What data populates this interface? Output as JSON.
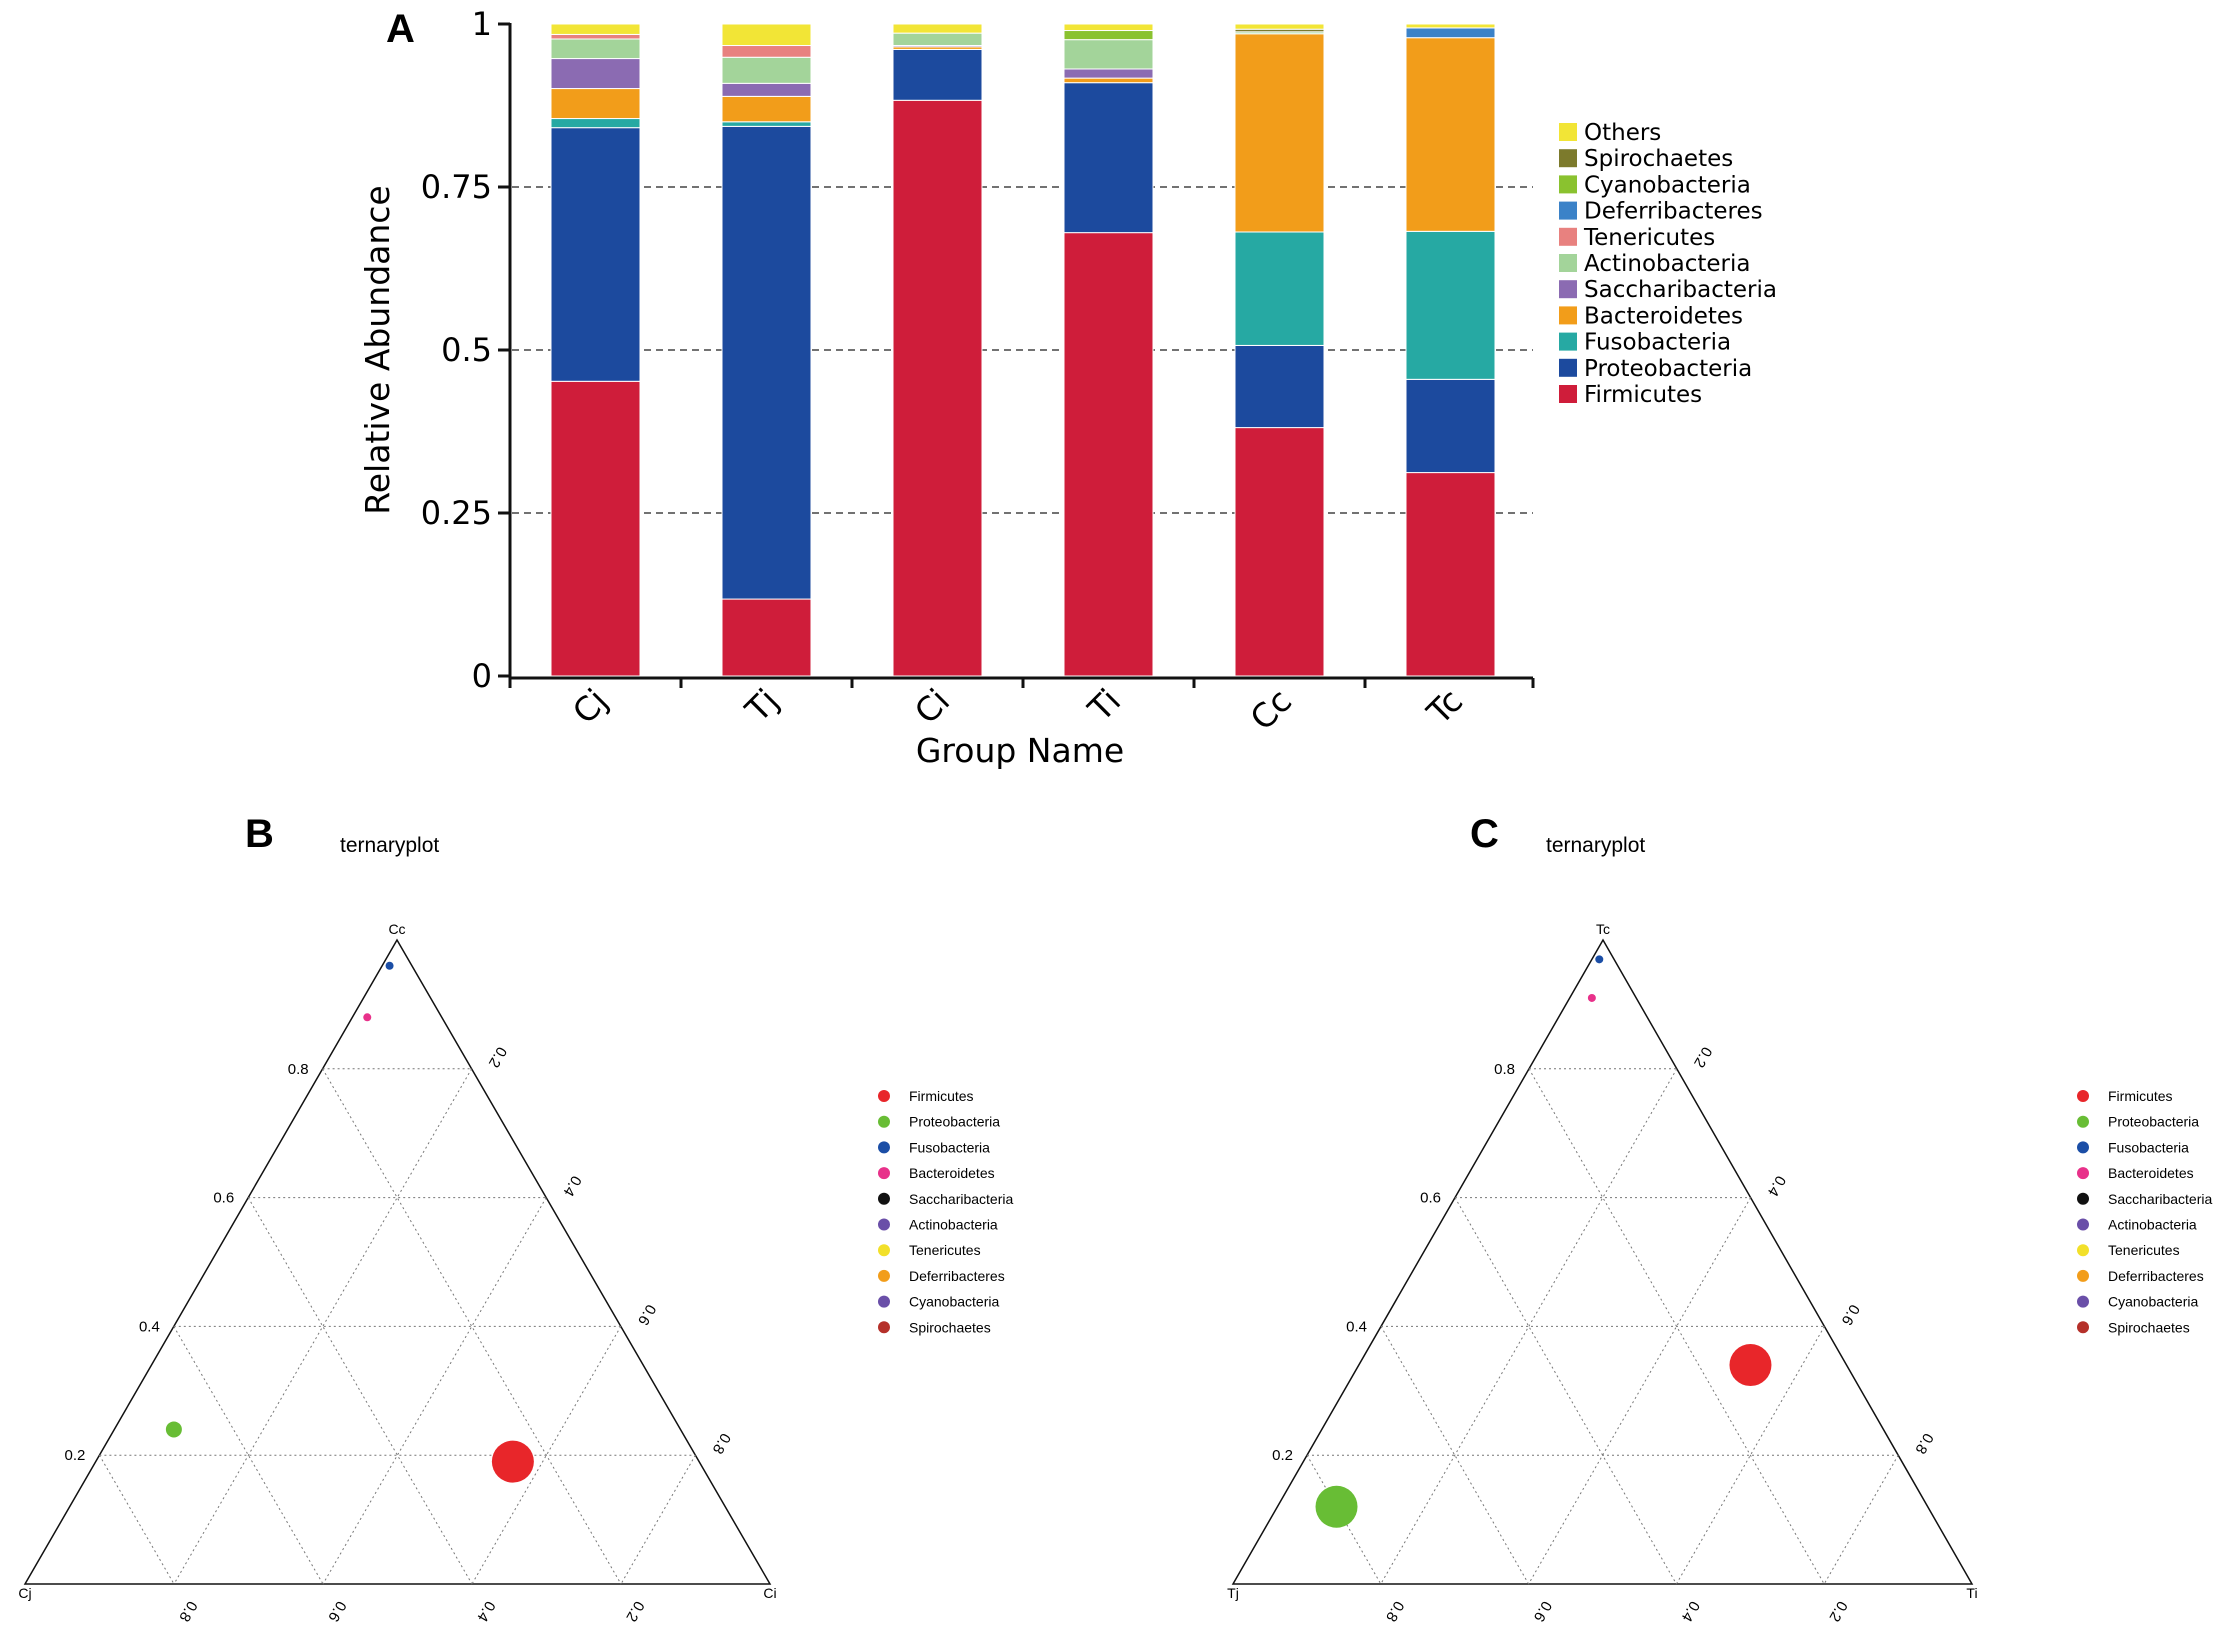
{
  "panel_a": {
    "letter": "A",
    "ylabel": "Relative Abundance",
    "xlabel": "Group Name",
    "yticks": [
      "0",
      "0.25",
      "0.5",
      "0.75",
      "1"
    ],
    "legend": [
      "Others",
      "Spirochaetes",
      "Cyanobacteria",
      "Deferribacteres",
      "Tenericutes",
      "Actinobacteria",
      "Saccharibacteria",
      "Bacteroidetes",
      "Fusobacteria",
      "Proteobacteria",
      "Firmicutes"
    ]
  },
  "panel_b": {
    "letter": "B",
    "title": "ternaryplot",
    "vertex_top": "Cc",
    "vertex_left": "Cj",
    "vertex_right": "Ci"
  },
  "panel_c": {
    "letter": "C",
    "title": "ternaryplot",
    "vertex_top": "Tc",
    "vertex_left": "Tj",
    "vertex_right": "Ti"
  },
  "ternary_ticks": {
    "left": [
      "0.8",
      "0.6",
      "0.4",
      "0.2"
    ],
    "right": [
      "0.2",
      "0.4",
      "0.6",
      "0.8"
    ],
    "bottom": [
      "0.8",
      "0.6",
      "0.4",
      "0.2"
    ]
  },
  "ternary_legend": [
    "Firmicutes",
    "Proteobacteria",
    "Fusobacteria",
    "Bacteroidetes",
    "Saccharibacteria",
    "Actinobacteria",
    "Tenericutes",
    "Deferribacteres",
    "Cyanobacteria",
    "Spirochaetes"
  ],
  "colors": {
    "bar": {
      "Firmicutes": "#cf1d3a",
      "Proteobacteria": "#1c4a9e",
      "Fusobacteria": "#26a9a3",
      "Bacteroidetes": "#f29d1a",
      "Saccharibacteria": "#8b6bb2",
      "Actinobacteria": "#a3d49a",
      "Tenericutes": "#e8817f",
      "Deferribacteres": "#3b82c8",
      "Cyanobacteria": "#8ac22f",
      "Spirochaetes": "#7c7a2c",
      "Others": "#f2e536"
    },
    "tern": {
      "Firmicutes": "#e8262a",
      "Proteobacteria": "#68bd35",
      "Fusobacteria": "#1b4ea6",
      "Bacteroidetes": "#e8318a",
      "Saccharibacteria": "#111111",
      "Actinobacteria": "#6a4fa8",
      "Tenericutes": "#f2e02a",
      "Deferribacteres": "#f29d1a",
      "Cyanobacteria": "#6a4fa8",
      "Spirochaetes": "#b5302a"
    }
  },
  "chart_data": [
    {
      "type": "bar",
      "stacked": true,
      "title": "",
      "xlabel": "Group Name",
      "ylabel": "Relative Abundance",
      "ylim": [
        0,
        1
      ],
      "grid": "dashed at 0.25, 0.5, 0.75",
      "legend_position": "right",
      "categories": [
        "Cj",
        "Tj",
        "Ci",
        "Ti",
        "Cc",
        "Tc"
      ],
      "series": [
        {
          "name": "Firmicutes",
          "values": [
            0.452,
            0.118,
            0.883,
            0.68,
            0.381,
            0.312
          ]
        },
        {
          "name": "Proteobacteria",
          "values": [
            0.389,
            0.725,
            0.078,
            0.23,
            0.126,
            0.143
          ]
        },
        {
          "name": "Fusobacteria",
          "values": [
            0.014,
            0.007,
            0.0,
            0.0,
            0.174,
            0.227
          ]
        },
        {
          "name": "Bacteroidetes",
          "values": [
            0.046,
            0.039,
            0.004,
            0.007,
            0.304,
            0.297
          ]
        },
        {
          "name": "Saccharibacteria",
          "values": [
            0.046,
            0.02,
            0.002,
            0.014,
            0.0,
            0.0
          ]
        },
        {
          "name": "Actinobacteria",
          "values": [
            0.03,
            0.04,
            0.019,
            0.045,
            0.003,
            0.0
          ]
        },
        {
          "name": "Tenericutes",
          "values": [
            0.007,
            0.018,
            0.0,
            0.0,
            0.0,
            0.0
          ]
        },
        {
          "name": "Deferribacteres",
          "values": [
            0.0,
            0.0,
            0.0,
            0.0,
            0.0,
            0.015
          ]
        },
        {
          "name": "Cyanobacteria",
          "values": [
            0.0,
            0.0,
            0.0,
            0.014,
            0.0,
            0.0
          ]
        },
        {
          "name": "Spirochaetes",
          "values": [
            0.0,
            0.0,
            0.0,
            0.0,
            0.004,
            0.0
          ]
        },
        {
          "name": "Others",
          "values": [
            0.016,
            0.033,
            0.014,
            0.01,
            0.008,
            0.006
          ]
        }
      ]
    },
    {
      "type": "scatter",
      "subtype": "ternary",
      "title": "ternaryplot",
      "axes": [
        "Cc",
        "Cj",
        "Ci"
      ],
      "ticks": [
        0.2,
        0.4,
        0.6,
        0.8
      ],
      "points": [
        {
          "name": "Fusobacteria",
          "Cc": 0.96,
          "Cj": 0.03,
          "Ci": 0.01,
          "size": "small"
        },
        {
          "name": "Bacteroidetes",
          "Cc": 0.88,
          "Cj": 0.1,
          "Ci": 0.02,
          "size": "small"
        },
        {
          "name": "Proteobacteria",
          "Cc": 0.24,
          "Cj": 0.68,
          "Ci": 0.08,
          "size": "medium"
        },
        {
          "name": "Firmicutes",
          "Cc": 0.19,
          "Cj": 0.25,
          "Ci": 0.56,
          "size": "large"
        }
      ]
    },
    {
      "type": "scatter",
      "subtype": "ternary",
      "title": "ternaryplot",
      "axes": [
        "Tc",
        "Tj",
        "Ti"
      ],
      "ticks": [
        0.2,
        0.4,
        0.6,
        0.8
      ],
      "points": [
        {
          "name": "Fusobacteria",
          "Tc": 0.97,
          "Tj": 0.02,
          "Ti": 0.01,
          "size": "small"
        },
        {
          "name": "Bacteroidetes",
          "Tc": 0.91,
          "Tj": 0.06,
          "Ti": 0.03,
          "size": "small"
        },
        {
          "name": "Firmicutes",
          "Tc": 0.34,
          "Tj": 0.13,
          "Ti": 0.53,
          "size": "large"
        },
        {
          "name": "Proteobacteria",
          "Tc": 0.12,
          "Tj": 0.8,
          "Ti": 0.08,
          "size": "large"
        }
      ]
    }
  ]
}
